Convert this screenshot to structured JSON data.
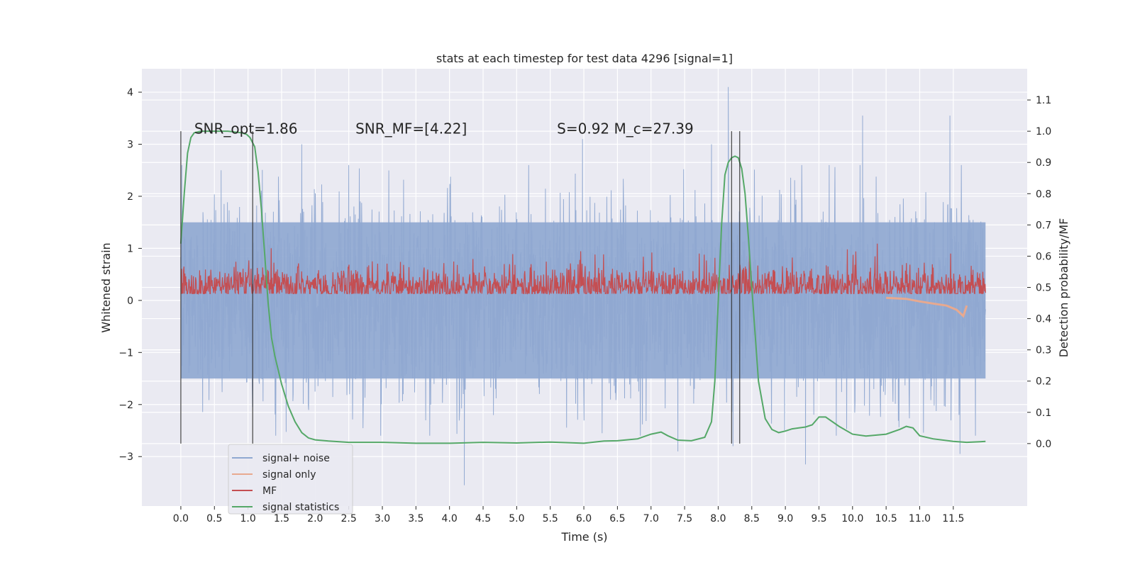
{
  "chart_data": {
    "type": "line",
    "title": "stats at each timestep for test data 4296 [signal=1]",
    "xlabel": "Time (s)",
    "ylabel_left": "Whitened strain",
    "ylabel_right": "Detection probability/MF",
    "xlim": [
      -0.58,
      12.6
    ],
    "ylim_left": [
      -3.95,
      4.45
    ],
    "ylim_right": [
      -0.2,
      1.2
    ],
    "x_ticks": [
      0.0,
      0.5,
      1.0,
      1.5,
      2.0,
      2.5,
      3.0,
      3.5,
      4.0,
      4.5,
      5.0,
      5.5,
      6.0,
      6.5,
      7.0,
      7.5,
      8.0,
      8.5,
      9.0,
      9.5,
      10.0,
      10.5,
      11.0,
      11.5
    ],
    "x_tick_labels": [
      "0.0",
      "0.5",
      "1.0",
      "1.5",
      "2.0",
      "2.5",
      "3.0",
      "3.5",
      "4.0",
      "4.5",
      "5.0",
      "5.5",
      "6.0",
      "6.5",
      "7.0",
      "7.5",
      "8.0",
      "8.5",
      "9.0",
      "9.5",
      "10.0",
      "10.5",
      "11.0",
      "11.5"
    ],
    "y_left_ticks": [
      -3,
      -2,
      -1,
      0,
      1,
      2,
      3,
      4
    ],
    "y_left_tick_labels": [
      "−3",
      "−2",
      "−1",
      "0",
      "1",
      "2",
      "3",
      "4"
    ],
    "y_right_ticks": [
      0.0,
      0.1,
      0.2,
      0.3,
      0.4,
      0.5,
      0.6,
      0.7,
      0.8,
      0.9,
      1.0,
      1.1
    ],
    "y_right_tick_labels": [
      "0.0",
      "0.1",
      "0.2",
      "0.3",
      "0.4",
      "0.5",
      "0.6",
      "0.7",
      "0.8",
      "0.9",
      "1.0",
      "1.1"
    ],
    "grid": true,
    "legend_position": "bottom-left",
    "annotations": [
      {
        "text": "SNR_opt=1.86",
        "x": 0.2,
        "y": 3.3
      },
      {
        "text": "SNR_MF=[4.22]",
        "x": 2.6,
        "y": 3.3
      },
      {
        "text": "S=0.92   M_c=27.39",
        "x": 5.6,
        "y": 3.3
      }
    ],
    "vlines": [
      {
        "x": 0.0,
        "y_from": -2.75,
        "y_to": 3.25
      },
      {
        "x": 1.07,
        "y_from": -2.75,
        "y_to": 3.25
      },
      {
        "x": 8.2,
        "y_from": -2.75,
        "y_to": 3.25
      },
      {
        "x": 8.32,
        "y_from": -2.75,
        "y_to": 3.25
      }
    ],
    "series": [
      {
        "name": "signal+ noise",
        "color": "#8fa8d1",
        "axis": "left",
        "x_range": [
          0.0,
          11.98
        ],
        "typical_band": [
          -1.5,
          1.5
        ],
        "peaks_x": [
          0.6,
          1.8,
          2.5,
          5.98,
          7.9,
          8.15,
          8.22,
          9.3,
          10.15,
          11.45,
          11.6
        ],
        "peaks_y": [
          2.5,
          3.0,
          2.6,
          3.1,
          3.0,
          4.1,
          -2.8,
          -3.15,
          3.55,
          3.55,
          -2.95
        ],
        "dip_x": [
          4.22,
          7.4
        ],
        "dip_y": [
          -3.55,
          -2.9
        ]
      },
      {
        "name": "signal only",
        "color": "#e8a98f",
        "axis": "left",
        "x": [
          10.5,
          10.8,
          11.0,
          11.2,
          11.4,
          11.55,
          11.65,
          11.7
        ],
        "y": [
          0.05,
          0.03,
          -0.02,
          -0.06,
          -0.1,
          -0.18,
          -0.3,
          -0.1
        ]
      },
      {
        "name": "MF",
        "color": "#c44e52",
        "axis": "right",
        "baseline": 0.5,
        "amplitude": 0.055
      },
      {
        "name": "signal statistics",
        "color": "#55a868",
        "axis": "right",
        "x": [
          0.0,
          0.05,
          0.1,
          0.15,
          0.2,
          0.3,
          0.5,
          0.7,
          0.9,
          0.98,
          1.03,
          1.1,
          1.15,
          1.2,
          1.25,
          1.3,
          1.35,
          1.4,
          1.5,
          1.6,
          1.7,
          1.8,
          1.9,
          2.0,
          2.2,
          2.5,
          3.0,
          3.5,
          4.0,
          4.5,
          5.0,
          5.5,
          6.0,
          6.3,
          6.5,
          6.8,
          7.0,
          7.15,
          7.25,
          7.4,
          7.6,
          7.8,
          7.9,
          7.95,
          8.0,
          8.05,
          8.1,
          8.15,
          8.2,
          8.25,
          8.3,
          8.35,
          8.4,
          8.45,
          8.5,
          8.55,
          8.6,
          8.7,
          8.8,
          8.9,
          9.0,
          9.1,
          9.2,
          9.3,
          9.4,
          9.5,
          9.6,
          9.8,
          10.0,
          10.2,
          10.5,
          10.7,
          10.8,
          10.9,
          11.0,
          11.2,
          11.5,
          11.7,
          11.9,
          11.98
        ],
        "y": [
          0.64,
          0.8,
          0.93,
          0.98,
          0.995,
          1.0,
          1.0,
          1.0,
          0.995,
          0.99,
          0.98,
          0.95,
          0.87,
          0.75,
          0.6,
          0.45,
          0.34,
          0.28,
          0.19,
          0.12,
          0.07,
          0.035,
          0.018,
          0.012,
          0.008,
          0.004,
          0.004,
          0.001,
          0.001,
          0.004,
          0.002,
          0.005,
          0.001,
          0.008,
          0.009,
          0.015,
          0.03,
          0.037,
          0.025,
          0.011,
          0.009,
          0.02,
          0.07,
          0.2,
          0.45,
          0.7,
          0.86,
          0.9,
          0.915,
          0.92,
          0.915,
          0.88,
          0.8,
          0.66,
          0.5,
          0.35,
          0.2,
          0.08,
          0.045,
          0.035,
          0.04,
          0.047,
          0.05,
          0.053,
          0.06,
          0.085,
          0.085,
          0.055,
          0.03,
          0.024,
          0.03,
          0.045,
          0.055,
          0.05,
          0.025,
          0.015,
          0.007,
          0.004,
          0.006,
          0.007
        ]
      }
    ],
    "legend": [
      "signal+ noise",
      "signal only",
      "MF",
      "signal statistics"
    ]
  }
}
